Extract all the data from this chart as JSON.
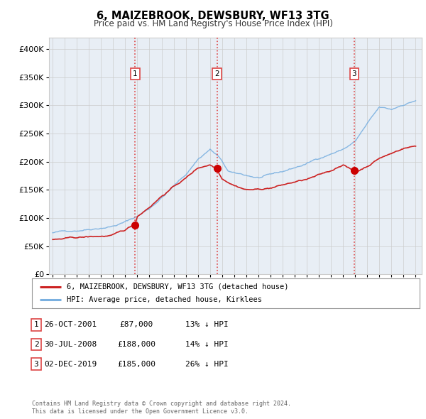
{
  "title": "6, MAIZEBROOK, DEWSBURY, WF13 3TG",
  "subtitle": "Price paid vs. HM Land Registry's House Price Index (HPI)",
  "ylim": [
    0,
    420000
  ],
  "yticks": [
    0,
    50000,
    100000,
    150000,
    200000,
    250000,
    300000,
    350000,
    400000
  ],
  "ytick_labels": [
    "£0",
    "£50K",
    "£100K",
    "£150K",
    "£200K",
    "£250K",
    "£300K",
    "£350K",
    "£400K"
  ],
  "xlim_start": 1994.7,
  "xlim_end": 2025.5,
  "xticks": [
    1995,
    1996,
    1997,
    1998,
    1999,
    2000,
    2001,
    2002,
    2003,
    2004,
    2005,
    2006,
    2007,
    2008,
    2009,
    2010,
    2011,
    2012,
    2013,
    2014,
    2015,
    2016,
    2017,
    2018,
    2019,
    2020,
    2021,
    2022,
    2023,
    2024,
    2025
  ],
  "sale_dates": [
    2001.82,
    2008.58,
    2019.92
  ],
  "sale_prices": [
    87000,
    188000,
    185000
  ],
  "sale_labels": [
    "1",
    "2",
    "3"
  ],
  "vline_color": "#dd4444",
  "sale_dot_color": "#cc0000",
  "hpi_line_color": "#7ab0e0",
  "price_line_color": "#cc2222",
  "legend_line1": "6, MAIZEBROOK, DEWSBURY, WF13 3TG (detached house)",
  "legend_line2": "HPI: Average price, detached house, Kirklees",
  "table_rows": [
    {
      "num": "1",
      "date": "26-OCT-2001",
      "price": "£87,000",
      "pct": "13% ↓ HPI"
    },
    {
      "num": "2",
      "date": "30-JUL-2008",
      "price": "£188,000",
      "pct": "14% ↓ HPI"
    },
    {
      "num": "3",
      "date": "02-DEC-2019",
      "price": "£185,000",
      "pct": "26% ↓ HPI"
    }
  ],
  "footer1": "Contains HM Land Registry data © Crown copyright and database right 2024.",
  "footer2": "This data is licensed under the Open Government Licence v3.0.",
  "background_color": "#ffffff",
  "plot_bg_color": "#e8eef5"
}
